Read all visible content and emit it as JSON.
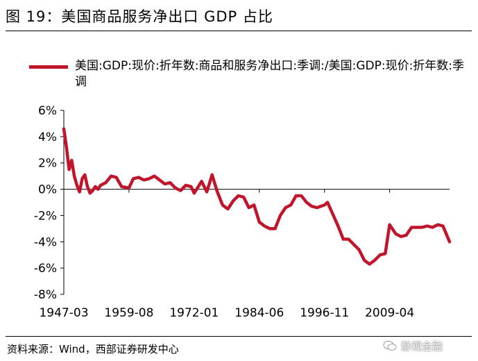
{
  "figure": {
    "title": "图 19：美国商品服务净出口 GDP 占比",
    "source": "资料来源：Wind，西部证券研发中心",
    "watermark": "静观金融"
  },
  "colors": {
    "series": "#c0152b",
    "axis": "#000000"
  },
  "chart_data": {
    "type": "line",
    "title": "图 19：美国商品服务净出口 GDP 占比",
    "xlabel": "",
    "ylabel": "",
    "legend_placement": "top",
    "grid": false,
    "x_tick_labels": [
      "1947-03",
      "1959-08",
      "1972-01",
      "1984-06",
      "1996-11",
      "2009-04"
    ],
    "y_tick_labels": [
      "6%",
      "4%",
      "2%",
      "0%",
      "-2%",
      "-4%",
      "-6%",
      "-8%"
    ],
    "y_ticks": [
      6,
      4,
      2,
      0,
      -2,
      -4,
      -6,
      -8
    ],
    "ylim": [
      -8,
      6
    ],
    "xlim": [
      "1947-03",
      "2020-09"
    ],
    "series": [
      {
        "name": "美国:GDP:现价:折年数:商品和服务净出口:季调:/美国:GDP:现价:折年数:季调",
        "x": [
          "1947-03",
          "1947-09",
          "1948-03",
          "1948-09",
          "1949-03",
          "1949-09",
          "1950-03",
          "1950-09",
          "1951-03",
          "1951-09",
          "1952-03",
          "1952-09",
          "1953-03",
          "1953-09",
          "1954-03",
          "1955-03",
          "1956-03",
          "1957-03",
          "1958-03",
          "1959-08",
          "1960-06",
          "1961-06",
          "1962-06",
          "1963-06",
          "1964-06",
          "1965-06",
          "1966-06",
          "1967-06",
          "1968-06",
          "1969-06",
          "1970-06",
          "1971-06",
          "1972-01",
          "1973-06",
          "1974-06",
          "1975-06",
          "1976-06",
          "1977-06",
          "1978-06",
          "1979-06",
          "1980-06",
          "1981-06",
          "1982-06",
          "1983-06",
          "1984-06",
          "1985-06",
          "1986-06",
          "1987-06",
          "1988-06",
          "1989-06",
          "1990-06",
          "1991-06",
          "1992-06",
          "1993-06",
          "1994-06",
          "1995-06",
          "1996-11",
          "1997-06",
          "1998-06",
          "1999-06",
          "2000-06",
          "2001-06",
          "2002-06",
          "2003-06",
          "2004-06",
          "2005-06",
          "2006-06",
          "2007-06",
          "2008-06",
          "2009-04",
          "2010-06",
          "2011-06",
          "2012-06",
          "2013-06",
          "2014-06",
          "2015-06",
          "2016-06",
          "2017-06",
          "2018-06",
          "2019-06",
          "2020-09"
        ],
        "values": [
          4.6,
          3.2,
          1.5,
          2.2,
          1.0,
          0.3,
          -0.2,
          0.8,
          1.1,
          0.2,
          -0.3,
          -0.1,
          0.2,
          0.0,
          0.3,
          0.5,
          1.0,
          0.9,
          0.2,
          0.1,
          0.8,
          0.9,
          0.7,
          0.8,
          1.0,
          0.7,
          0.4,
          0.5,
          0.1,
          -0.1,
          0.3,
          0.2,
          -0.3,
          0.6,
          -0.2,
          1.1,
          -0.2,
          -1.2,
          -1.5,
          -0.9,
          -0.5,
          -0.6,
          -1.4,
          -1.2,
          -2.5,
          -2.8,
          -3.0,
          -3.0,
          -2.0,
          -1.4,
          -1.2,
          -0.5,
          -0.5,
          -1.0,
          -1.3,
          -1.4,
          -1.2,
          -1.0,
          -1.9,
          -2.8,
          -3.8,
          -3.8,
          -4.2,
          -4.6,
          -5.4,
          -5.7,
          -5.4,
          -5.0,
          -4.9,
          -2.7,
          -3.4,
          -3.6,
          -3.5,
          -2.9,
          -2.9,
          -2.9,
          -2.8,
          -2.9,
          -2.7,
          -2.8,
          -4.0
        ]
      }
    ]
  }
}
